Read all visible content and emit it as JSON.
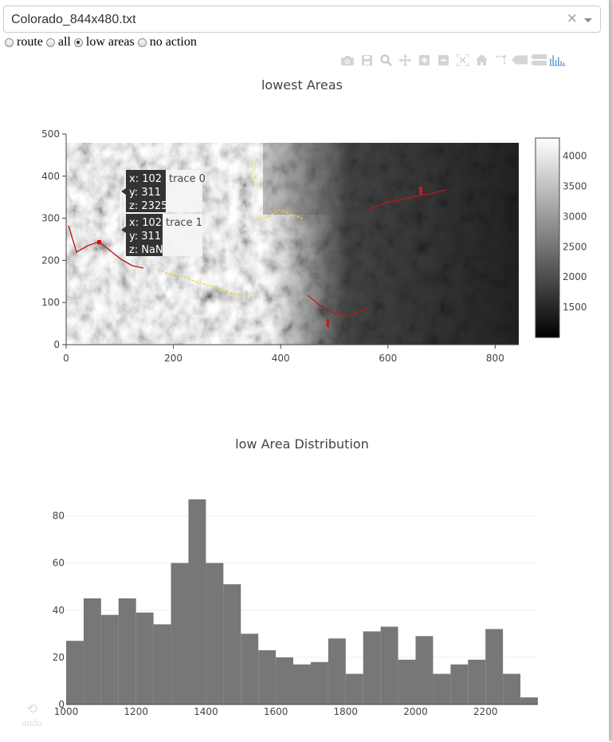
{
  "file_select": {
    "value": "Colorado_844x480.txt",
    "clear_icon": "×"
  },
  "mode_radios": [
    {
      "label": "route",
      "checked": false
    },
    {
      "label": "all",
      "checked": false
    },
    {
      "label": "low areas",
      "checked": true
    },
    {
      "label": "no action",
      "checked": false
    }
  ],
  "modebar_icons": [
    "camera-icon",
    "save-icon",
    "zoom-icon",
    "pan-icon",
    "zoom-in-icon",
    "zoom-out-icon",
    "autoscale-icon",
    "reset-axes-icon",
    "toggle-spike-icon",
    "hover-closest-icon",
    "hover-compare-icon",
    "plotly-logo-icon"
  ],
  "plot1": {
    "title": "lowest Areas",
    "x_ticks": [
      "0",
      "200",
      "400",
      "600",
      "800"
    ],
    "y_ticks": [
      "0",
      "100",
      "200",
      "300",
      "400",
      "500"
    ],
    "colorbar_ticks": [
      "1500",
      "2000",
      "2500",
      "3000",
      "3500",
      "4000"
    ],
    "hover": [
      {
        "x": "x: 102",
        "y": "y: 311",
        "z": "z: 2325",
        "trace": "trace 0"
      },
      {
        "x": "x: 102",
        "y": "y: 311",
        "z": "z: NaN",
        "trace": "trace 1"
      }
    ]
  },
  "plot2": {
    "title": "low Area Distribution"
  },
  "chart_data": [
    {
      "type": "heatmap",
      "title": "lowest Areas",
      "xlim": [
        0,
        844
      ],
      "ylim": [
        0,
        500
      ],
      "x_ticks": [
        0,
        200,
        400,
        600,
        800
      ],
      "y_ticks": [
        0,
        100,
        200,
        300,
        400,
        500
      ],
      "colorscale": "greys",
      "zlim": [
        1000,
        4300
      ],
      "colorbar_ticks": [
        1500,
        2000,
        2500,
        3000,
        3500,
        4000
      ],
      "image_extent": {
        "x": [
          0,
          844
        ],
        "y": [
          0,
          480
        ]
      },
      "hover_point": {
        "x": 102,
        "y": 311,
        "z_trace0": 2325,
        "z_trace1": "NaN"
      }
    },
    {
      "type": "bar",
      "title": "low Area Distribution",
      "x": [
        1000,
        1050,
        1100,
        1150,
        1200,
        1250,
        1300,
        1350,
        1400,
        1450,
        1500,
        1550,
        1600,
        1650,
        1700,
        1750,
        1800,
        1850,
        1900,
        1950,
        2000,
        2050,
        2100,
        2150,
        2200,
        2250,
        2300
      ],
      "values": [
        27,
        45,
        38,
        45,
        39,
        34,
        60,
        87,
        60,
        51,
        30,
        23,
        20,
        17,
        18,
        28,
        13,
        31,
        33,
        19,
        29,
        13,
        17,
        19,
        32,
        13,
        3
      ],
      "bin_width": 50,
      "xlim": [
        1000,
        2350
      ],
      "ylim": [
        0,
        90
      ],
      "x_ticks": [
        1000,
        1200,
        1400,
        1600,
        1800,
        2000,
        2200
      ],
      "y_ticks": [
        0,
        20,
        40,
        60,
        80
      ],
      "color": "#777777"
    }
  ],
  "undo": {
    "icon": "⟲",
    "label": "undo"
  }
}
